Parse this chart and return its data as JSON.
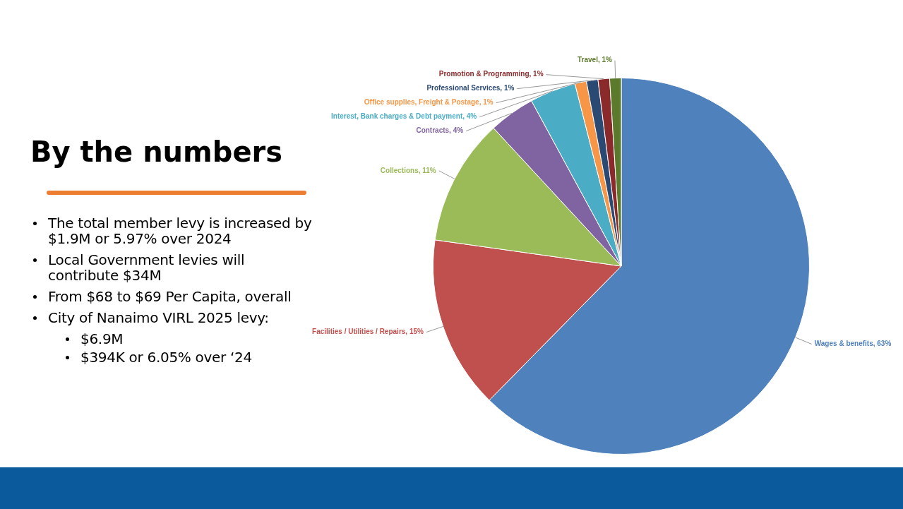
{
  "chart_data": {
    "type": "pie",
    "title": "By the numbers",
    "categories": [
      "Wages & benefits",
      "Facilities / Utilities / Repairs",
      "Collections",
      "Contracts",
      "Interest, Bank charges & Debt payment",
      "Office supplies, Freight & Postage",
      "Professional Services",
      "Promotion & Programming",
      "Travel"
    ],
    "values": [
      63,
      15,
      11,
      4,
      4,
      1,
      1,
      1,
      1
    ],
    "value_labels": [
      "63%",
      "15%",
      "11%",
      "4%",
      "4%",
      "1%",
      "1%",
      "1%",
      "1%"
    ],
    "colors": [
      "#4f81bd",
      "#c0504d",
      "#9bbb59",
      "#8064a2",
      "#4bacc6",
      "#f79646",
      "#2a4a74",
      "#8b2a2a",
      "#5b7a2c"
    ],
    "annotations": [
      "The total member levy is increased by $1.9M or 5.97% over 2024",
      "Local Government levies will contribute $34M",
      "From $68 to $69 Per Capita, overall",
      "City of Nanaimo VIRL 2025 levy:",
      "$6.9M",
      "$394K or 6.05% over ‘24"
    ]
  }
}
